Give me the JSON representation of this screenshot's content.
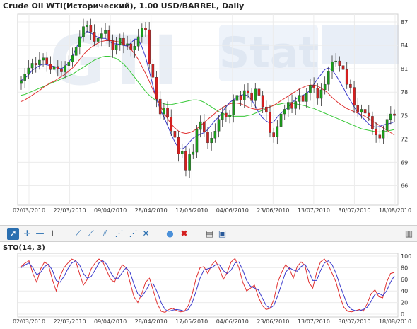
{
  "header": {
    "title": "Crude Oil WTI(Исторический), 1.00 USD/BARREL, Daily"
  },
  "watermark": {
    "logo": "Stat"
  },
  "toolbar": {
    "icons": [
      "cursor-arrow",
      "crosshair",
      "horizontal-line",
      "vertical-line",
      "trend-line",
      "ray",
      "channel",
      "fan",
      "gann",
      "comment",
      "delete",
      "print",
      "save",
      "trash"
    ]
  },
  "indicator": {
    "title": "STO(14, 3)"
  },
  "chart_data": [
    {
      "type": "candlestick",
      "title": "Crude Oil WTI(Исторический), 1.00 USD/BARREL, Daily",
      "x_tick_labels": [
        "02/03/2010",
        "22/03/2010",
        "09/04/2010",
        "28/04/2010",
        "17/05/2010",
        "04/06/2010",
        "23/06/2010",
        "13/07/2010",
        "30/07/2010",
        "18/08/2010"
      ],
      "y_tick_labels": [
        "87",
        "84",
        "81",
        "78",
        "75",
        "72",
        "69",
        "66"
      ],
      "ylim": [
        63.5,
        88
      ],
      "grid": true,
      "colors": {
        "up": "#1a9e1a",
        "down": "#d42020",
        "ma_fast": "#3a3acc",
        "ma_mid": "#e03030",
        "ma_slow": "#39c939"
      },
      "close": [
        79.5,
        80.3,
        81.1,
        81.7,
        81.5,
        82.1,
        82.4,
        81.6,
        80.9,
        81.3,
        81.0,
        80.6,
        81.4,
        81.9,
        82.7,
        83.8,
        85.1,
        86.4,
        86.6,
        85.7,
        84.5,
        84.9,
        85.5,
        85.9,
        84.6,
        83.4,
        84.1,
        84.9,
        84.0,
        84.2,
        83.4,
        83.9,
        85.1,
        86.2,
        86.0,
        81.6,
        79.9,
        77.1,
        75.2,
        76.0,
        74.8,
        73.0,
        72.2,
        70.1,
        70.4,
        68.0,
        70.0,
        70.3,
        73.2,
        74.2,
        72.9,
        71.5,
        72.1,
        73.0,
        74.5,
        75.3,
        74.8,
        75.1,
        76.9,
        77.6,
        77.0,
        78.2,
        77.9,
        76.9,
        78.4,
        77.6,
        76.1,
        75.4,
        72.8,
        72.3,
        73.6,
        75.2,
        75.8,
        76.7,
        75.9,
        76.8,
        77.6,
        76.8,
        77.9,
        78.9,
        78.5,
        77.2,
        78.3,
        79.0,
        80.7,
        81.9,
        82.0,
        81.4,
        80.9,
        79.0,
        78.6,
        76.3,
        75.4,
        75.8,
        75.3,
        74.9,
        73.3,
        72.5,
        72.1,
        73.1,
        74.5,
        75.2,
        75.0
      ],
      "ma_fast": [
        79.5,
        79.8,
        80.2,
        80.8,
        81.1,
        81.4,
        81.6,
        81.5,
        81.4,
        81.3,
        81.1,
        81.0,
        81.3,
        81.8,
        82.6,
        83.6,
        84.6,
        85.4,
        85.8,
        85.6,
        85.3,
        85.0,
        84.9,
        84.9,
        84.6,
        84.2,
        84.2,
        84.1,
        84.0,
        83.9,
        84.3,
        84.8,
        84.8,
        83.8,
        82.5,
        80.7,
        78.8,
        77.1,
        75.8,
        74.8,
        73.7,
        72.6,
        71.6,
        70.8,
        70.7,
        71.0,
        71.6,
        72.1,
        72.4,
        72.6,
        72.8,
        73.2,
        73.8,
        74.4,
        74.8,
        75.5,
        76.1,
        76.7,
        77.0,
        77.4,
        77.6,
        77.7,
        77.5,
        77.0,
        76.2,
        75.3,
        74.7,
        74.3,
        74.0,
        74.2,
        74.8,
        75.3,
        75.7,
        76.1,
        76.6,
        77.1,
        77.4,
        77.6,
        77.8,
        78.3,
        79.0,
        79.7,
        80.3,
        80.9,
        81.1,
        80.8,
        80.2,
        79.4,
        78.6,
        77.7,
        76.9,
        76.1,
        75.4,
        74.9,
        74.4,
        73.9,
        73.6,
        73.5,
        73.6,
        73.8,
        73.9,
        74.0,
        74.2
      ],
      "ma_mid": [
        76.8,
        77.0,
        77.3,
        77.6,
        77.9,
        78.2,
        78.6,
        78.9,
        79.2,
        79.4,
        79.7,
        80.0,
        80.3,
        80.7,
        81.1,
        81.6,
        82.2,
        82.8,
        83.3,
        83.7,
        84.0,
        84.3,
        84.5,
        84.6,
        84.6,
        84.6,
        84.5,
        84.4,
        84.2,
        83.9,
        83.5,
        82.9,
        82.2,
        81.3,
        80.4,
        79.4,
        78.3,
        77.3,
        76.3,
        75.4,
        74.6,
        73.9,
        73.4,
        73.0,
        72.8,
        72.7,
        72.8,
        73.0,
        73.3,
        73.7,
        74.1,
        74.5,
        74.9,
        75.3,
        75.7,
        76.0,
        76.3,
        76.5,
        76.6,
        76.6,
        76.5,
        76.3,
        76.1,
        75.9,
        75.8,
        75.8,
        75.9,
        76.0,
        76.1,
        76.3,
        76.6,
        76.9,
        77.2,
        77.5,
        77.8,
        78.1,
        78.4,
        78.6,
        78.8,
        78.9,
        78.9,
        78.8,
        78.5,
        78.2,
        77.8,
        77.3,
        76.9,
        76.5,
        76.2,
        75.9,
        75.7,
        75.5,
        75.3,
        75.1,
        74.9,
        74.6,
        74.3,
        74.0,
        73.7,
        73.4,
        73.1,
        72.8,
        72.5
      ],
      "ma_slow": [
        77.6,
        77.7,
        77.9,
        78.1,
        78.3,
        78.5,
        78.7,
        78.9,
        79.1,
        79.3,
        79.5,
        79.7,
        79.9,
        80.1,
        80.3,
        80.6,
        80.9,
        81.2,
        81.5,
        81.8,
        82.1,
        82.3,
        82.5,
        82.6,
        82.6,
        82.5,
        82.3,
        82.0,
        81.6,
        81.1,
        80.5,
        79.9,
        79.3,
        78.7,
        78.1,
        77.6,
        77.2,
        76.9,
        76.7,
        76.5,
        76.4,
        76.4,
        76.5,
        76.6,
        76.7,
        76.8,
        76.9,
        77.0,
        77.0,
        76.9,
        76.7,
        76.4,
        76.1,
        75.8,
        75.5,
        75.3,
        75.1,
        75.0,
        74.9,
        74.9,
        74.9,
        74.9,
        75.0,
        75.1,
        75.3,
        75.5,
        75.7,
        75.9,
        76.1,
        76.3,
        76.4,
        76.5,
        76.6,
        76.6,
        76.6,
        76.5,
        76.4,
        76.3,
        76.2,
        76.0,
        75.9,
        75.7,
        75.5,
        75.3,
        75.1,
        74.9,
        74.7,
        74.5,
        74.3,
        74.1,
        73.9,
        73.7,
        73.5,
        73.3,
        73.2,
        73.1,
        73.0,
        72.9,
        72.9,
        72.9,
        73.0,
        73.1,
        73.2
      ]
    },
    {
      "type": "line",
      "title": "STO(14, 3)",
      "y_tick_labels": [
        "100",
        "80",
        "60",
        "40",
        "20",
        "0"
      ],
      "ylim": [
        0,
        100
      ],
      "grid": true,
      "series": [
        {
          "color": "#e03030",
          "values": [
            82,
            88,
            92,
            70,
            55,
            78,
            90,
            85,
            60,
            40,
            65,
            80,
            88,
            95,
            92,
            70,
            50,
            60,
            78,
            88,
            95,
            90,
            75,
            60,
            55,
            72,
            85,
            80,
            55,
            30,
            20,
            35,
            55,
            62,
            40,
            18,
            5,
            3,
            8,
            10,
            6,
            4,
            5,
            15,
            35,
            62,
            80,
            82,
            70,
            85,
            92,
            78,
            60,
            72,
            90,
            96,
            80,
            55,
            40,
            45,
            50,
            30,
            15,
            8,
            10,
            25,
            55,
            72,
            85,
            78,
            62,
            82,
            90,
            84,
            55,
            45,
            72,
            90,
            95,
            85,
            70,
            55,
            30,
            12,
            5,
            4,
            6,
            8,
            5,
            18,
            35,
            42,
            30,
            28,
            55,
            70,
            72
          ]
        },
        {
          "color": "#3a3acc",
          "values": [
            80,
            85,
            88,
            80,
            68,
            72,
            82,
            86,
            76,
            58,
            55,
            65,
            78,
            88,
            92,
            85,
            70,
            62,
            65,
            76,
            88,
            92,
            86,
            72,
            62,
            62,
            72,
            80,
            72,
            52,
            35,
            30,
            40,
            52,
            52,
            38,
            20,
            8,
            5,
            7,
            8,
            7,
            5,
            8,
            20,
            40,
            62,
            76,
            78,
            80,
            85,
            85,
            75,
            70,
            76,
            88,
            90,
            76,
            58,
            48,
            45,
            42,
            28,
            15,
            10,
            15,
            32,
            52,
            72,
            80,
            76,
            74,
            82,
            86,
            74,
            58,
            58,
            75,
            88,
            92,
            85,
            70,
            50,
            32,
            15,
            8,
            6,
            6,
            8,
            12,
            22,
            34,
            36,
            32,
            40,
            55,
            66
          ]
        }
      ]
    }
  ]
}
